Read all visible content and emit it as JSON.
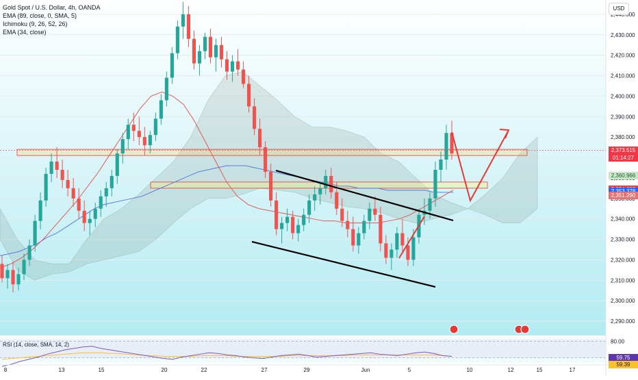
{
  "legend": {
    "title": "Gold Spot / U.S. Dollar, 4h, OANDA",
    "line1": "EMA (89, close, 0, SMA, 5)",
    "line2": "Ichimoku (9, 26, 52, 26)",
    "line3": "EMA (34, close)"
  },
  "rsi_label": "RSI (14, close, SMA, 14, 2)",
  "currency": "USD",
  "price_tags": [
    {
      "text": "2,373.515",
      "sub": "01:14:27",
      "color": "#f23645"
    },
    {
      "text": "2,360.966",
      "color": "#c8e6c9",
      "text_color": "#1b5e20"
    },
    {
      "text": "2,354.223",
      "color": "#f23645"
    },
    {
      "text": "2,353.378",
      "color": "#2962ff"
    },
    {
      "text": "2,351.290",
      "color": "#e57373"
    }
  ],
  "rsi_tags": [
    {
      "text": "59.75",
      "color": "#5e35b1"
    },
    {
      "text": "59.39",
      "color": "#fbc02d",
      "text_color": "#131722"
    }
  ],
  "chart_data": {
    "type": "candlestick",
    "title": "Gold Spot / U.S. Dollar, 4h, OANDA",
    "y_ticks": [
      "2,440.000",
      "2,430.000",
      "2,420.000",
      "2,410.000",
      "2,400.000",
      "2,390.000",
      "2,380.000",
      "2,370.000",
      "2,360.000",
      "2,350.000",
      "2,340.000",
      "2,330.000",
      "2,320.000",
      "2,310.000",
      "2,300.000",
      "2,290.000"
    ],
    "y_tick_values": [
      2440,
      2430,
      2420,
      2410,
      2400,
      2390,
      2380,
      2370,
      2360,
      2350,
      2340,
      2330,
      2320,
      2310,
      2300,
      2290
    ],
    "ylim": [
      2283,
      2447
    ],
    "x_ticks": [
      "8",
      "13",
      "15",
      "20",
      "22",
      "27",
      "29",
      "Jun",
      "5",
      "10",
      "12",
      "15",
      "17"
    ],
    "rsi_ticks": [
      "80.00",
      "57.00"
    ],
    "rsi_ylim": [
      50,
      85
    ],
    "candles": [
      [
        2318,
        2322,
        2309,
        2311
      ],
      [
        2311,
        2318,
        2306,
        2315
      ],
      [
        2315,
        2319,
        2304,
        2308
      ],
      [
        2308,
        2316,
        2305,
        2313
      ],
      [
        2313,
        2323,
        2310,
        2320
      ],
      [
        2320,
        2330,
        2317,
        2327
      ],
      [
        2327,
        2342,
        2324,
        2339
      ],
      [
        2339,
        2353,
        2335,
        2349
      ],
      [
        2349,
        2365,
        2346,
        2362
      ],
      [
        2362,
        2372,
        2358,
        2368
      ],
      [
        2368,
        2375,
        2360,
        2364
      ],
      [
        2364,
        2369,
        2355,
        2359
      ],
      [
        2359,
        2364,
        2351,
        2355
      ],
      [
        2355,
        2360,
        2346,
        2350
      ],
      [
        2350,
        2355,
        2340,
        2344
      ],
      [
        2344,
        2349,
        2334,
        2338
      ],
      [
        2338,
        2344,
        2332,
        2340
      ],
      [
        2340,
        2348,
        2336,
        2345
      ],
      [
        2345,
        2354,
        2341,
        2351
      ],
      [
        2351,
        2358,
        2346,
        2355
      ],
      [
        2355,
        2364,
        2351,
        2361
      ],
      [
        2361,
        2374,
        2357,
        2372
      ],
      [
        2372,
        2382,
        2367,
        2379
      ],
      [
        2379,
        2389,
        2374,
        2386
      ],
      [
        2386,
        2392,
        2378,
        2383
      ],
      [
        2383,
        2390,
        2376,
        2380
      ],
      [
        2380,
        2385,
        2371,
        2376
      ],
      [
        2376,
        2383,
        2372,
        2381
      ],
      [
        2381,
        2392,
        2378,
        2389
      ],
      [
        2389,
        2401,
        2386,
        2398
      ],
      [
        2398,
        2412,
        2395,
        2409
      ],
      [
        2409,
        2424,
        2406,
        2421
      ],
      [
        2421,
        2437,
        2418,
        2434
      ],
      [
        2434,
        2446,
        2428,
        2440
      ],
      [
        2440,
        2444,
        2424,
        2428
      ],
      [
        2428,
        2432,
        2413,
        2416
      ],
      [
        2416,
        2425,
        2410,
        2422
      ],
      [
        2422,
        2431,
        2418,
        2429
      ],
      [
        2429,
        2433,
        2416,
        2419
      ],
      [
        2419,
        2428,
        2412,
        2425
      ],
      [
        2425,
        2429,
        2414,
        2418
      ],
      [
        2418,
        2422,
        2408,
        2412
      ],
      [
        2412,
        2420,
        2407,
        2417
      ],
      [
        2417,
        2423,
        2410,
        2413
      ],
      [
        2413,
        2417,
        2404,
        2406
      ],
      [
        2406,
        2410,
        2392,
        2395
      ],
      [
        2395,
        2399,
        2381,
        2384
      ],
      [
        2384,
        2389,
        2371,
        2375
      ],
      [
        2375,
        2378,
        2360,
        2363
      ],
      [
        2363,
        2367,
        2346,
        2349
      ],
      [
        2349,
        2353,
        2332,
        2335
      ],
      [
        2335,
        2341,
        2328,
        2338
      ],
      [
        2338,
        2345,
        2334,
        2341
      ],
      [
        2341,
        2344,
        2330,
        2333
      ],
      [
        2333,
        2340,
        2329,
        2337
      ],
      [
        2337,
        2345,
        2334,
        2342
      ],
      [
        2342,
        2352,
        2338,
        2349
      ],
      [
        2349,
        2356,
        2344,
        2352
      ],
      [
        2352,
        2358,
        2347,
        2355
      ],
      [
        2355,
        2364,
        2352,
        2361
      ],
      [
        2361,
        2365,
        2350,
        2353
      ],
      [
        2353,
        2358,
        2342,
        2345
      ],
      [
        2345,
        2350,
        2336,
        2339
      ],
      [
        2339,
        2344,
        2331,
        2335
      ],
      [
        2335,
        2341,
        2324,
        2327
      ],
      [
        2327,
        2336,
        2323,
        2333
      ],
      [
        2333,
        2342,
        2330,
        2339
      ],
      [
        2339,
        2348,
        2335,
        2345
      ],
      [
        2345,
        2351,
        2339,
        2342
      ],
      [
        2342,
        2346,
        2324,
        2328
      ],
      [
        2328,
        2332,
        2318,
        2321
      ],
      [
        2321,
        2328,
        2315,
        2325
      ],
      [
        2325,
        2336,
        2321,
        2333
      ],
      [
        2333,
        2340,
        2324,
        2327
      ],
      [
        2327,
        2331,
        2317,
        2320
      ],
      [
        2320,
        2335,
        2317,
        2331
      ],
      [
        2331,
        2345,
        2328,
        2342
      ],
      [
        2342,
        2350,
        2337,
        2344
      ],
      [
        2344,
        2353,
        2340,
        2350
      ],
      [
        2350,
        2368,
        2346,
        2364
      ],
      [
        2364,
        2373,
        2358,
        2369
      ],
      [
        2369,
        2386,
        2364,
        2382
      ],
      [
        2382,
        2388,
        2369,
        2372
      ]
    ],
    "ema89": [
      2322,
      2323,
      2324,
      2326,
      2328,
      2331,
      2333,
      2336,
      2339,
      2342,
      2345,
      2347,
      2348,
      2349,
      2350,
      2351,
      2353,
      2355,
      2357,
      2359,
      2361,
      2363,
      2364,
      2365,
      2366,
      2366,
      2366,
      2365,
      2364,
      2363,
      2362,
      2361,
      2360,
      2359,
      2358,
      2357,
      2356,
      2356,
      2355,
      2355,
      2355,
      2354,
      2354,
      2354,
      2354,
      2354,
      2353,
      2353,
      2353
    ],
    "ema34": [
      2316,
      2318,
      2321,
      2325,
      2330,
      2336,
      2342,
      2348,
      2355,
      2362,
      2370,
      2378,
      2386,
      2394,
      2400,
      2402,
      2400,
      2396,
      2388,
      2378,
      2368,
      2358,
      2351,
      2347,
      2345,
      2344,
      2343,
      2342,
      2341,
      2340,
      2339,
      2339,
      2338,
      2338,
      2338,
      2338,
      2339,
      2340,
      2342,
      2345,
      2348,
      2351,
      2354
    ],
    "cloud_top": [
      2345,
      2330,
      2320,
      2318,
      2318,
      2330,
      2340,
      2345,
      2352,
      2360,
      2368,
      2380,
      2398,
      2410,
      2412,
      2405,
      2398,
      2390,
      2385,
      2385,
      2383,
      2380,
      2372,
      2368,
      2360,
      2352,
      2348,
      2345,
      2352,
      2360,
      2372,
      2380
    ],
    "cloud_bottom": [
      2330,
      2315,
      2310,
      2313,
      2314,
      2318,
      2320,
      2322,
      2324,
      2330,
      2338,
      2345,
      2350,
      2350,
      2352,
      2355,
      2354,
      2353,
      2350,
      2348,
      2346,
      2345,
      2343,
      2340,
      2338,
      2340,
      2342,
      2345,
      2342,
      2338,
      2338,
      2345
    ],
    "zones": [
      {
        "y1": 2371,
        "y2": 2374
      },
      {
        "y1": 2355,
        "y2": 2358
      }
    ],
    "channel_upper": [
      [
        2365,
        2345
      ]
    ],
    "channel_lower": [
      [
        2334,
        2311
      ]
    ],
    "rsi": [
      45,
      48,
      52,
      55,
      58,
      62,
      65,
      68,
      70,
      72,
      73,
      70,
      68,
      66,
      64,
      62,
      60,
      58,
      56,
      55,
      58,
      60,
      62,
      64,
      63,
      61,
      60,
      58,
      57,
      56,
      58,
      60,
      61,
      62,
      60,
      58,
      59,
      60,
      61,
      62,
      63,
      64,
      62,
      61,
      60,
      62,
      64,
      65,
      63,
      60,
      59
    ],
    "rsi_ma": [
      55,
      56,
      57,
      58,
      59,
      60,
      61,
      62,
      63,
      64,
      64,
      64,
      63,
      63,
      62,
      61,
      60,
      60,
      59,
      59,
      59,
      59,
      60,
      60,
      60,
      60,
      59,
      59,
      59,
      59,
      59,
      59,
      60,
      60,
      60,
      60,
      60,
      60,
      60,
      61,
      61,
      61,
      61,
      61,
      61,
      61,
      61,
      61,
      61,
      60,
      59
    ]
  }
}
